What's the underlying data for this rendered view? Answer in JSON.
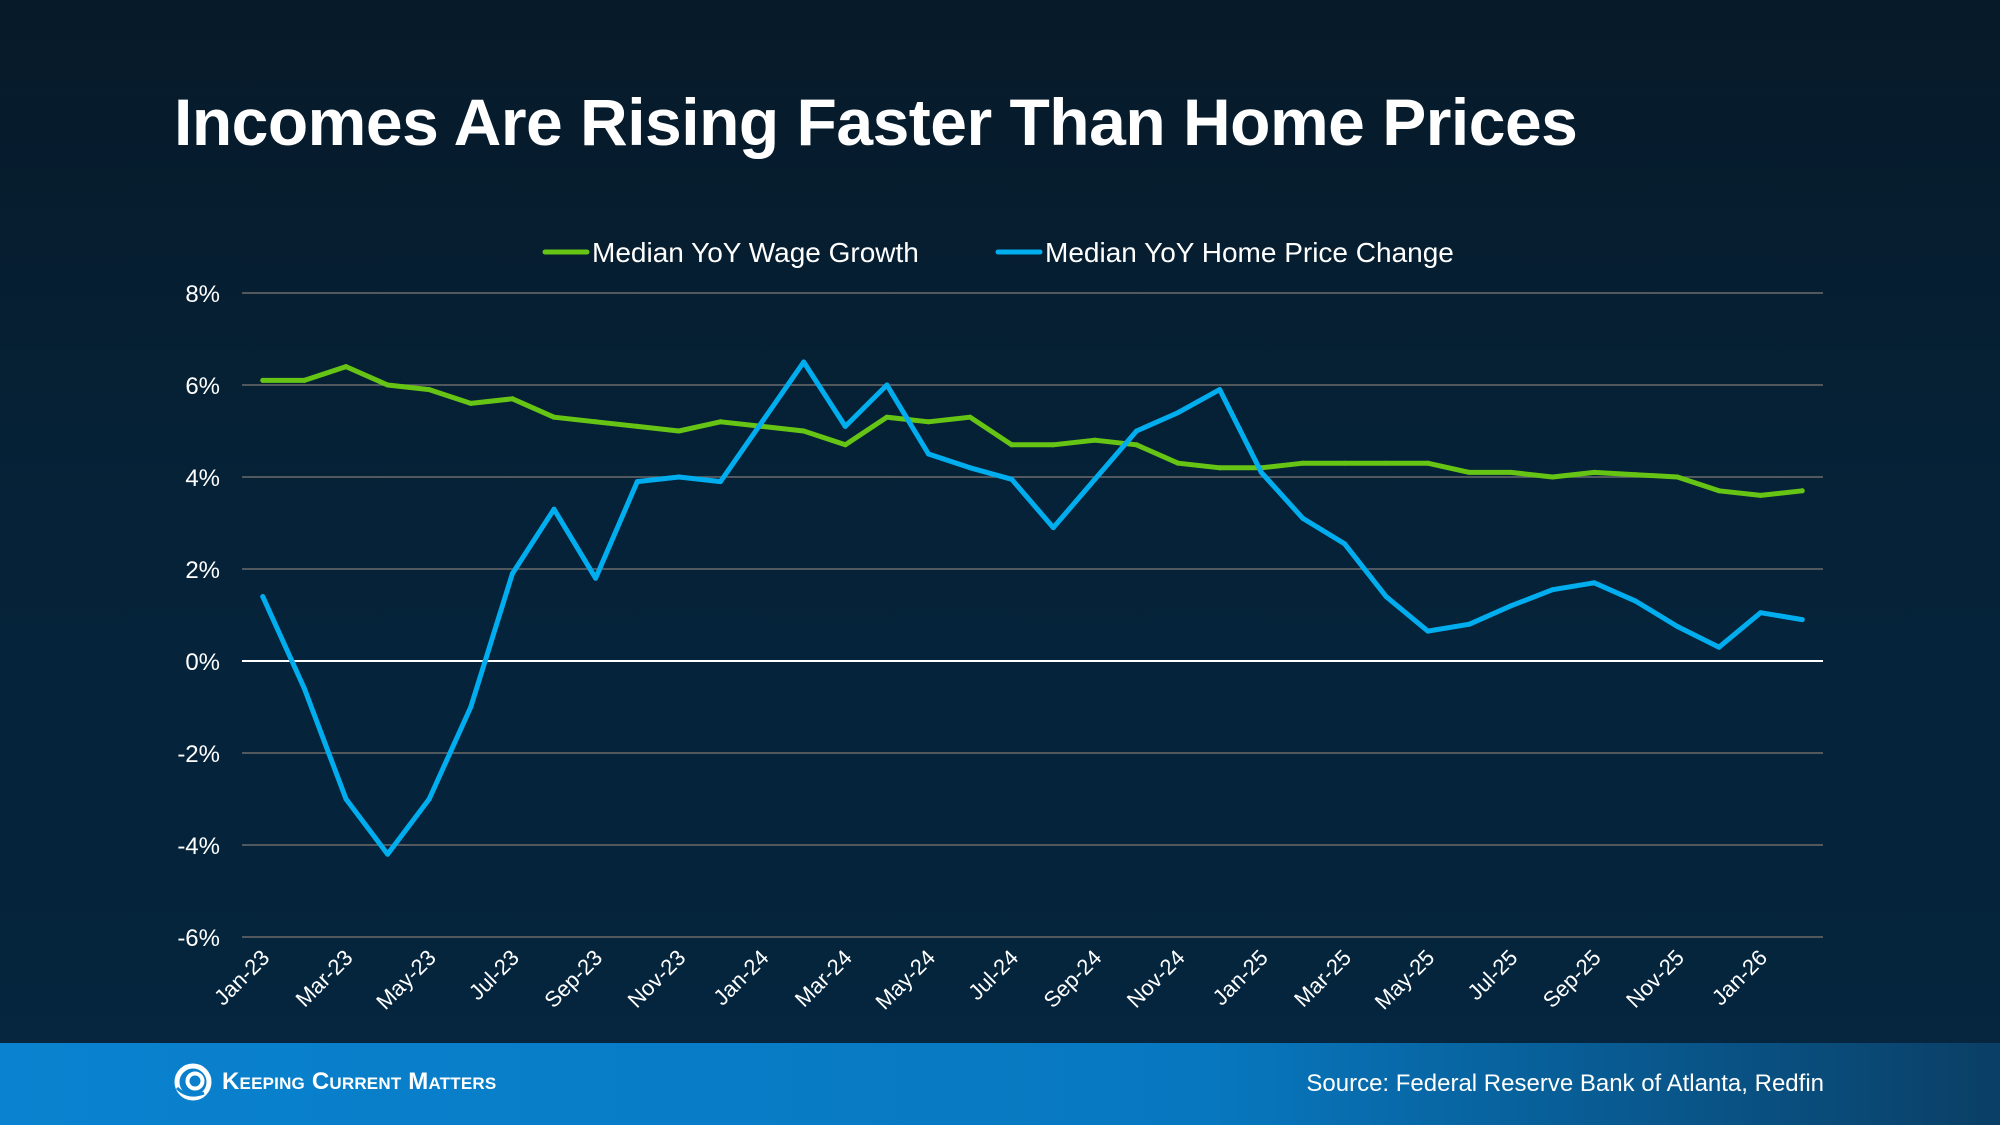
{
  "title": "Incomes Are Rising Faster Than Home Prices",
  "footer": {
    "logo_text": "Keeping Current Matters",
    "source": "Source: Federal Reserve Bank of Atlanta, Redfin"
  },
  "colors": {
    "wage": "#66c414",
    "home": "#00aeef",
    "grid": "#6b6b6b",
    "zero": "#ffffff"
  },
  "chart_data": {
    "type": "line",
    "title": "Incomes Are Rising Faster Than Home Prices",
    "xlabel": "",
    "ylabel": "",
    "ylim": [
      -6,
      8
    ],
    "yticks": [
      8,
      6,
      4,
      2,
      0,
      -2,
      -4,
      -6
    ],
    "ytick_labels": [
      "8%",
      "6%",
      "4%",
      "2%",
      "0%",
      "-2%",
      "-4%",
      "-6%"
    ],
    "grid": true,
    "legend_position": "top-center",
    "x": [
      "Jan-23",
      "Feb-23",
      "Mar-23",
      "Apr-23",
      "May-23",
      "Jun-23",
      "Jul-23",
      "Aug-23",
      "Sep-23",
      "Oct-23",
      "Nov-23",
      "Dec-23",
      "Jan-24",
      "Feb-24",
      "Mar-24",
      "Apr-24",
      "May-24",
      "Jun-24",
      "Jul-24",
      "Aug-24",
      "Sep-24",
      "Oct-24",
      "Nov-24",
      "Dec-24",
      "Jan-25",
      "Feb-25",
      "Mar-25",
      "Apr-25",
      "May-25",
      "Jun-25",
      "Jul-25",
      "Aug-25",
      "Sep-25",
      "Oct-25",
      "Nov-25",
      "Dec-25",
      "Jan-26",
      "Feb-26"
    ],
    "xtick_labels": [
      "Jan-23",
      "Mar-23",
      "May-23",
      "Jul-23",
      "Sep-23",
      "Nov-23",
      "Jan-24",
      "Mar-24",
      "May-24",
      "Jul-24",
      "Sep-24",
      "Nov-24",
      "Jan-25",
      "Mar-25",
      "May-25",
      "Jul-25",
      "Sep-25",
      "Nov-25",
      "Jan-26"
    ],
    "series": [
      {
        "name": "Median YoY Wage Growth",
        "values": [
          6.1,
          6.1,
          6.4,
          6.0,
          5.9,
          5.6,
          5.7,
          5.3,
          5.2,
          5.1,
          5.0,
          5.2,
          5.1,
          5.0,
          4.7,
          5.3,
          5.2,
          5.3,
          4.7,
          4.7,
          4.8,
          4.7,
          4.3,
          4.2,
          4.2,
          4.3,
          4.3,
          4.3,
          4.3,
          4.1,
          4.1,
          4.0,
          4.1,
          4.05,
          4.0,
          3.7,
          3.6,
          3.7
        ]
      },
      {
        "name": "Median YoY Home Price Change",
        "values": [
          1.4,
          -0.6,
          -3.0,
          -4.2,
          -3.0,
          -1.0,
          1.9,
          3.3,
          1.8,
          3.9,
          4.0,
          3.9,
          5.2,
          6.5,
          5.1,
          6.0,
          4.5,
          4.2,
          3.95,
          2.9,
          3.95,
          5.0,
          5.4,
          5.9,
          4.1,
          3.1,
          2.55,
          1.4,
          0.65,
          0.8,
          1.2,
          1.55,
          1.7,
          1.3,
          0.75,
          0.3,
          1.05,
          0.9
        ]
      }
    ]
  }
}
